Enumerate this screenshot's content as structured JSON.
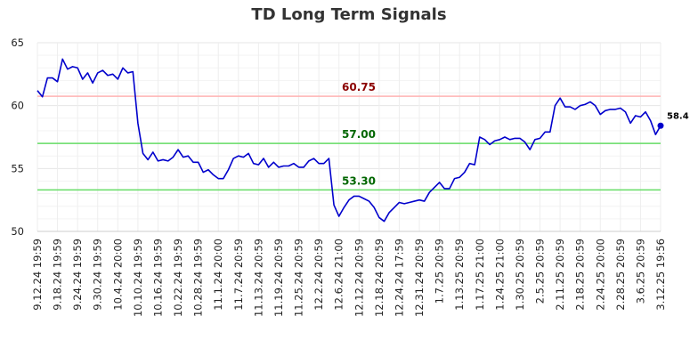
{
  "chart_data": {
    "type": "line",
    "title": "TD Long Term Signals",
    "xlabel": "",
    "ylabel": "",
    "ylim": [
      50,
      65
    ],
    "y_ticks": [
      50,
      55,
      60,
      65
    ],
    "grid": true,
    "x_tick_labels": [
      "9.12.24 19:59",
      "9.18.24 19:59",
      "9.24.24 19:59",
      "9.30.24 19:59",
      "10.4.24 20:00",
      "10.10.24 19:59",
      "10.16.24 19:59",
      "10.22.24 19:59",
      "10.28.24 19:59",
      "11.1.24 20:00",
      "11.7.24 20:59",
      "11.13.24 20:59",
      "11.19.24 20:59",
      "11.25.24 20:59",
      "12.2.24 20:59",
      "12.6.24 21:00",
      "12.12.24 20:59",
      "12.18.24 20:59",
      "12.24.24 17:59",
      "12.31.24 20:59",
      "1.7.25 20:59",
      "1.13.25 20:59",
      "1.17.25 21:00",
      "1.24.25 21:00",
      "1.30.25 20:59",
      "2.5.25 20:59",
      "2.11.25 20:59",
      "2.18.25 20:59",
      "2.24.25 20:00",
      "2.28.25 20:59",
      "3.6.25 20:59",
      "3.12.25 19:56"
    ],
    "series": [
      {
        "color": "#0000cc",
        "values": [
          61.2,
          60.7,
          62.2,
          62.2,
          61.9,
          63.7,
          62.9,
          63.1,
          63.0,
          62.1,
          62.6,
          61.8,
          62.6,
          62.8,
          62.4,
          62.5,
          62.1,
          63.0,
          62.6,
          62.7,
          58.6,
          56.2,
          55.7,
          56.3,
          55.6,
          55.7,
          55.6,
          55.9,
          56.5,
          55.9,
          56.0,
          55.5,
          55.5,
          54.7,
          54.9,
          54.5,
          54.2,
          54.2,
          54.9,
          55.8,
          56.0,
          55.9,
          56.2,
          55.4,
          55.3,
          55.8,
          55.1,
          55.5,
          55.1,
          55.2,
          55.2,
          55.4,
          55.1,
          55.1,
          55.6,
          55.8,
          55.4,
          55.4,
          55.8,
          52.1,
          51.2,
          51.9,
          52.5,
          52.8,
          52.8,
          52.6,
          52.4,
          51.9,
          51.1,
          50.8,
          51.5,
          51.9,
          52.3,
          52.2,
          52.3,
          52.4,
          52.5,
          52.4,
          53.1,
          53.5,
          53.9,
          53.4,
          53.4,
          54.2,
          54.3,
          54.7,
          55.4,
          55.3,
          57.5,
          57.3,
          56.9,
          57.2,
          57.3,
          57.5,
          57.3,
          57.4,
          57.4,
          57.1,
          56.5,
          57.3,
          57.4,
          57.9,
          57.9,
          60.0,
          60.6,
          59.9,
          59.9,
          59.7,
          60.0,
          60.1,
          60.3,
          60.0,
          59.3,
          59.6,
          59.7,
          59.7,
          59.8,
          59.5,
          58.6,
          59.2,
          59.1,
          59.5,
          58.8,
          57.7,
          58.4
        ]
      }
    ],
    "reference_lines": [
      {
        "value": 60.75,
        "label": "60.75",
        "line_color": "#ffb3b3",
        "label_color": "#8b0000"
      },
      {
        "value": 57.0,
        "label": "57.00",
        "line_color": "#66dd66",
        "label_color": "#006600"
      },
      {
        "value": 53.3,
        "label": "53.30",
        "line_color": "#66dd66",
        "label_color": "#006600"
      }
    ],
    "last_value_label": "58.4"
  }
}
